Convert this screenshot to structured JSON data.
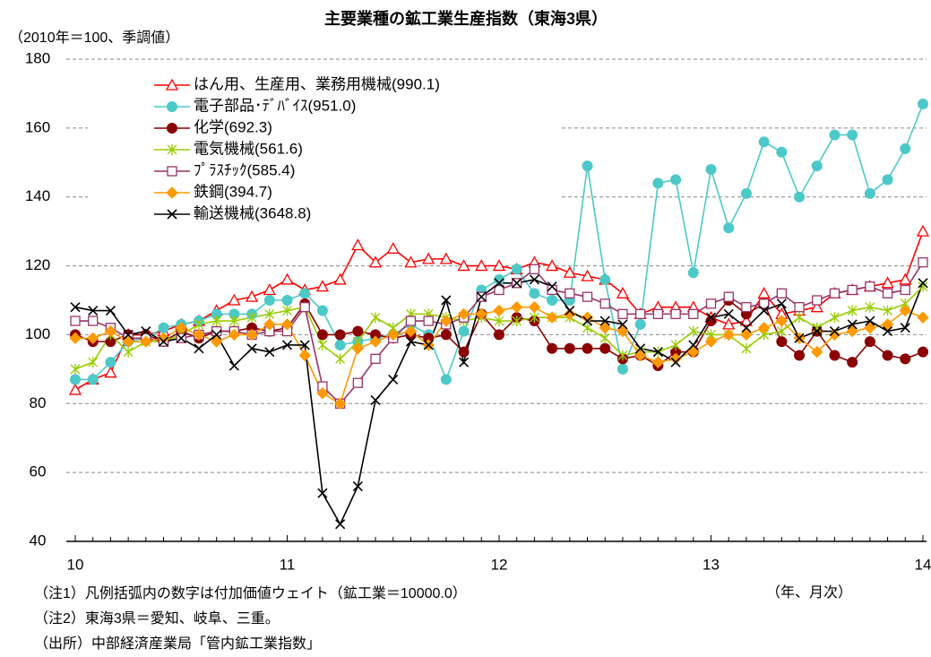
{
  "chart_data": {
    "type": "line",
    "title": "主要業種の鉱工業生産指数（東海3県）",
    "subtitle": "（2010年＝100、季調値）",
    "x_label": "（年、月次）",
    "notes": [
      "（注1）凡例括弧内の数字は付加価値ウェイト（鉱工業＝10000.0）",
      "（注2）東海3県＝愛知、岐阜、三重。",
      "（出所）中部経済産業局「管内鉱工業指数」"
    ],
    "categories": [
      "10",
      null,
      null,
      null,
      null,
      null,
      null,
      null,
      null,
      null,
      null,
      null,
      "11",
      null,
      null,
      null,
      null,
      null,
      null,
      null,
      null,
      null,
      null,
      null,
      "12",
      null,
      null,
      null,
      null,
      null,
      null,
      null,
      null,
      null,
      null,
      null,
      "13",
      null,
      null,
      null,
      null,
      null,
      null,
      null,
      null,
      null,
      null,
      null,
      "14"
    ],
    "ylim": [
      40,
      180
    ],
    "yticks": [
      40,
      60,
      80,
      100,
      120,
      140,
      160,
      180
    ],
    "grid": true,
    "legend": "upper left",
    "series": [
      {
        "name": "はん用、生産用、業務用機械(990.1)",
        "color": "#ff0000",
        "marker": "triangle-open",
        "values": [
          84,
          87,
          89,
          100,
          100,
          101,
          103,
          104,
          107,
          110,
          111,
          113,
          116,
          113,
          114,
          116,
          126,
          121,
          125,
          121,
          122,
          122,
          120,
          120,
          120,
          119,
          121,
          120,
          118,
          117,
          116,
          112,
          106,
          108,
          108,
          108,
          105,
          103,
          104,
          112,
          106,
          107,
          108,
          112,
          113,
          114,
          115,
          116,
          130
        ]
      },
      {
        "name": "電子部品･ﾃﾞﾊﾞｲｽ(951.0)",
        "color": "#4cc8c8",
        "marker": "circle",
        "values": [
          87,
          87,
          92,
          98,
          99,
          102,
          103,
          104,
          106,
          106,
          106,
          110,
          110,
          112,
          107,
          97,
          98,
          99,
          100,
          103,
          100,
          87,
          101,
          113,
          116,
          119,
          112,
          110,
          110,
          149,
          116,
          90,
          103,
          144,
          145,
          118,
          148,
          131,
          141,
          156,
          153,
          140,
          149,
          158,
          158,
          141,
          145,
          154,
          167
        ]
      },
      {
        "name": "化学(692.3)",
        "color": "#8b0000",
        "marker": "circle",
        "values": [
          100,
          98,
          98,
          100,
          100,
          98,
          101,
          99,
          101,
          101,
          102,
          101,
          102,
          109,
          100,
          100,
          101,
          100,
          99,
          100,
          99,
          100,
          95,
          106,
          100,
          105,
          104,
          96,
          96,
          96,
          96,
          93,
          94,
          91,
          95,
          95,
          104,
          110,
          106,
          109,
          98,
          94,
          101,
          94,
          92,
          98,
          94,
          93,
          95
        ]
      },
      {
        "name": "電気機械(561.6)",
        "color": "#99cc00",
        "marker": "star",
        "values": [
          90,
          92,
          100,
          95,
          98,
          98,
          100,
          103,
          104,
          104,
          105,
          106,
          107,
          108,
          97,
          93,
          98,
          105,
          102,
          106,
          106,
          105,
          104,
          105,
          104,
          104,
          105,
          105,
          105,
          102,
          99,
          94,
          95,
          95,
          97,
          101,
          100,
          100,
          96,
          100,
          101,
          105,
          102,
          105,
          107,
          108,
          107,
          109,
          114
        ]
      },
      {
        "name": "ﾌﾟﾗｽﾁｯｸ(585.4)",
        "color": "#993366",
        "marker": "square-open",
        "values": [
          104,
          104,
          102,
          99,
          99,
          98,
          99,
          100,
          101,
          101,
          100,
          101,
          101,
          108,
          85,
          80,
          86,
          93,
          99,
          104,
          104,
          103,
          105,
          111,
          113,
          115,
          119,
          113,
          112,
          111,
          109,
          106,
          106,
          106,
          106,
          106,
          109,
          111,
          108,
          109,
          112,
          108,
          110,
          112,
          113,
          114,
          112,
          113,
          121
        ]
      },
      {
        "name": "鉄鋼(394.7)",
        "color": "#ff9900",
        "marker": "diamond",
        "values": [
          99,
          99,
          101,
          98,
          98,
          99,
          102,
          100,
          98,
          100,
          100,
          103,
          103,
          94,
          83,
          80,
          96,
          98,
          100,
          101,
          97,
          104,
          106,
          106,
          107,
          108,
          108,
          105,
          106,
          105,
          102,
          101,
          94,
          92,
          93,
          95,
          98,
          100,
          100,
          102,
          104,
          99,
          95,
          100,
          101,
          102,
          103,
          107,
          105
        ]
      },
      {
        "name": "輸送機械(3648.8)",
        "color": "#000000",
        "marker": "x",
        "values": [
          108,
          107,
          107,
          100,
          101,
          98,
          99,
          96,
          100,
          91,
          96,
          95,
          97,
          97,
          54,
          45,
          56,
          81,
          87,
          98,
          97,
          110,
          92,
          111,
          115,
          115,
          116,
          114,
          107,
          104,
          104,
          103,
          96,
          95,
          92,
          97,
          105,
          106,
          102,
          107,
          109,
          99,
          101,
          101,
          103,
          104,
          101,
          102,
          115
        ]
      }
    ]
  }
}
